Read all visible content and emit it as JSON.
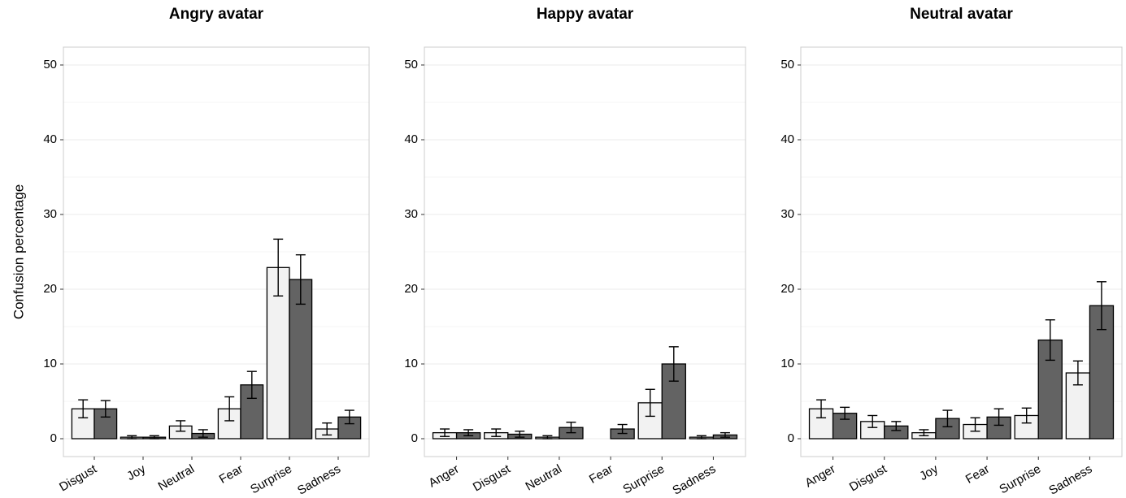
{
  "figure": {
    "ylabel": "Confusion percentage"
  },
  "colors": {
    "bar_light": "#f2f2f2",
    "bar_dark": "#636363",
    "bar_stroke": "#000000",
    "panel_border": "#cccccc",
    "grid": "#ebebeb"
  },
  "chart_data": [
    {
      "type": "bar",
      "title": "Angry avatar",
      "xlabel": "",
      "ylabel": "Confusion percentage",
      "ylim": [
        0,
        52
      ],
      "yticks": [
        "0",
        "10",
        "20",
        "30",
        "40",
        "50"
      ],
      "grid": true,
      "categories": [
        "Disgust",
        "Joy",
        "Neutral",
        "Fear",
        "Surprise",
        "Sadness"
      ],
      "series": [
        {
          "values": [
            4.0,
            0.2,
            1.7,
            4.0,
            22.9,
            1.3
          ],
          "errors": [
            1.2,
            0.2,
            0.7,
            1.6,
            3.8,
            0.8
          ]
        },
        {
          "values": [
            4.0,
            0.2,
            0.7,
            7.2,
            21.3,
            2.9
          ],
          "errors": [
            1.1,
            0.2,
            0.5,
            1.8,
            3.3,
            0.9
          ]
        }
      ]
    },
    {
      "type": "bar",
      "title": "Happy avatar",
      "xlabel": "",
      "ylabel": "",
      "ylim": [
        0,
        52
      ],
      "yticks": [
        "0",
        "10",
        "20",
        "30",
        "40",
        "50"
      ],
      "grid": true,
      "categories": [
        "Anger",
        "Disgust",
        "Neutral",
        "Fear",
        "Surprise",
        "Sadness"
      ],
      "series": [
        {
          "values": [
            0.8,
            0.8,
            0.2,
            0.0,
            4.8,
            0.2
          ],
          "errors": [
            0.5,
            0.5,
            0.2,
            0.0,
            1.8,
            0.2
          ]
        },
        {
          "values": [
            0.8,
            0.6,
            1.5,
            1.3,
            10.0,
            0.5
          ],
          "errors": [
            0.4,
            0.4,
            0.7,
            0.6,
            2.3,
            0.3
          ]
        }
      ]
    },
    {
      "type": "bar",
      "title": "Neutral avatar",
      "xlabel": "",
      "ylabel": "",
      "ylim": [
        0,
        52
      ],
      "yticks": [
        "0",
        "10",
        "20",
        "30",
        "40",
        "50"
      ],
      "grid": true,
      "categories": [
        "Anger",
        "Disgust",
        "Joy",
        "Fear",
        "Surprise",
        "Sadness"
      ],
      "series": [
        {
          "values": [
            4.0,
            2.3,
            0.8,
            1.9,
            3.1,
            8.8
          ],
          "errors": [
            1.2,
            0.8,
            0.4,
            0.9,
            1.0,
            1.6
          ]
        },
        {
          "values": [
            3.4,
            1.7,
            2.7,
            2.9,
            13.2,
            17.8
          ],
          "errors": [
            0.8,
            0.6,
            1.1,
            1.1,
            2.7,
            3.2
          ]
        }
      ]
    }
  ]
}
